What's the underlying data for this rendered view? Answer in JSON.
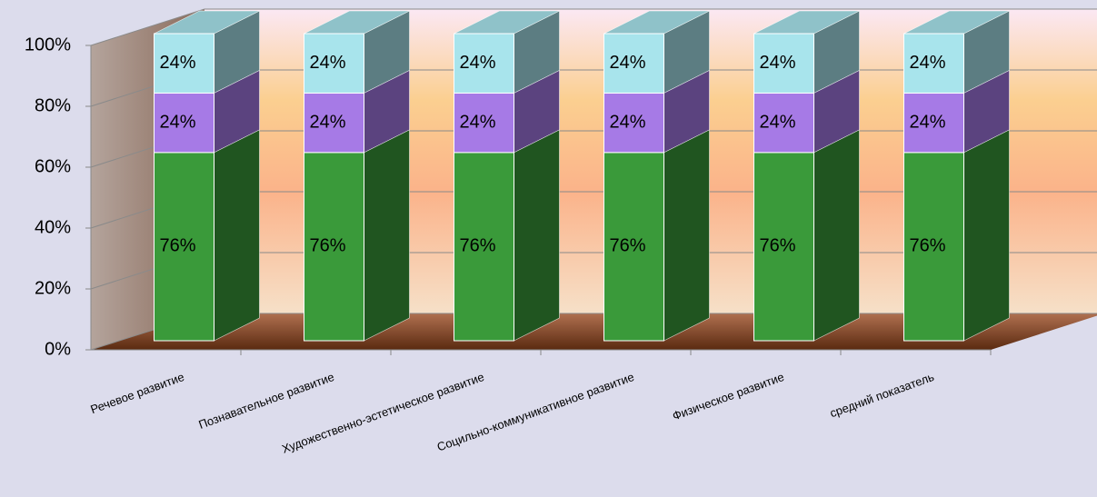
{
  "chart_data": {
    "type": "bar",
    "stacked": "percent",
    "categories": [
      "Речевое развитие",
      "Познавательное развитие",
      "Художественно-эстетическое развитие",
      "Социльно-коммуникативное развитие",
      "Физическое развитие",
      "средний показатель"
    ],
    "series": [
      {
        "color": "#3a9a3a",
        "values": [
          76,
          76,
          76,
          76,
          76,
          76
        ],
        "value_labels": [
          "76%",
          "76%",
          "76%",
          "76%",
          "76%",
          "76%"
        ]
      },
      {
        "color": "#a67ae6",
        "values": [
          24,
          24,
          24,
          24,
          24,
          24
        ],
        "value_labels": [
          "24%",
          "24%",
          "24%",
          "24%",
          "24%",
          "24%"
        ]
      },
      {
        "color": "#a8e4ec",
        "values": [
          24,
          24,
          24,
          24,
          24,
          24
        ],
        "value_labels": [
          "24%",
          "24%",
          "24%",
          "24%",
          "24%",
          "24%"
        ]
      }
    ],
    "ylim": [
      0,
      100
    ],
    "yticks": [
      {
        "value": 0,
        "label": "0%"
      },
      {
        "value": 20,
        "label": "20%"
      },
      {
        "value": 40,
        "label": "40%"
      },
      {
        "value": 60,
        "label": "60%"
      },
      {
        "value": 80,
        "label": "80%"
      },
      {
        "value": 100,
        "label": "100%"
      }
    ],
    "grid": true
  }
}
